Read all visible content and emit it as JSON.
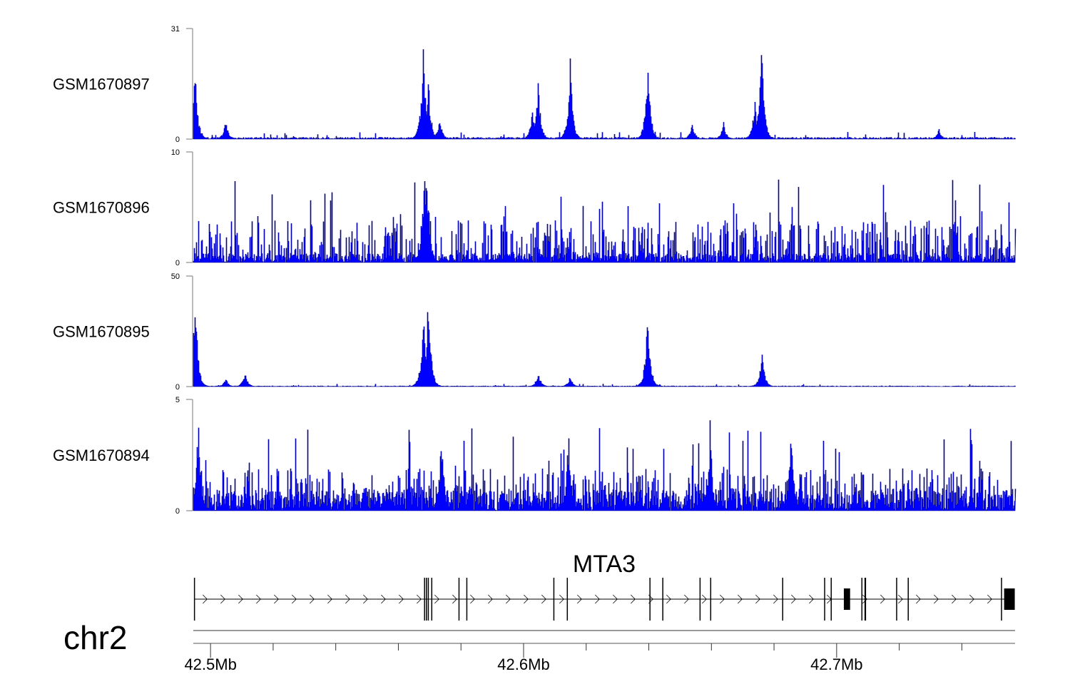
{
  "chart_data": {
    "type": "area",
    "title": "",
    "chromosome": "chr2",
    "xlim_kb": [
      42494.5,
      42757.0
    ],
    "x_ticks_kb": [
      42500,
      42520,
      42540,
      42560,
      42580,
      42600,
      42620,
      42640,
      42660,
      42680,
      42700,
      42720,
      42740
    ],
    "x_tick_labels": [
      {
        "kb": 42500,
        "label": "42.5Mb"
      },
      {
        "kb": 42600,
        "label": "42.6Mb"
      },
      {
        "kb": 42700,
        "label": "42.7Mb"
      }
    ],
    "series": [
      {
        "name": "GSM1670897",
        "ylim": [
          0,
          31
        ],
        "ytick_labels": [
          "0",
          "31"
        ],
        "noise_level": 0.5,
        "peaks": [
          [
            42495.0,
            22
          ],
          [
            42504.8,
            6
          ],
          [
            42567.9,
            29
          ],
          [
            42569.5,
            18
          ],
          [
            42573.1,
            7
          ],
          [
            42602.7,
            9
          ],
          [
            42604.6,
            17
          ],
          [
            42614.8,
            24
          ],
          [
            42639.6,
            25
          ],
          [
            42653.8,
            5
          ],
          [
            42663.8,
            5
          ],
          [
            42673.8,
            12
          ],
          [
            42675.9,
            31
          ],
          [
            42732.6,
            3
          ]
        ]
      },
      {
        "name": "GSM1670896",
        "ylim": [
          0,
          10
        ],
        "ytick_labels": [
          "0",
          "10"
        ],
        "noise_level": 1.1,
        "peaks": [
          [
            42568.2,
            10
          ],
          [
            42568.9,
            8
          ],
          [
            42569.5,
            6
          ]
        ]
      },
      {
        "name": "GSM1670895",
        "ylim": [
          0,
          50
        ],
        "ytick_labels": [
          "0",
          "50"
        ],
        "noise_level": 0.3,
        "peaks": [
          [
            42495.0,
            49
          ],
          [
            42504.8,
            4
          ],
          [
            42510.9,
            7
          ],
          [
            42567.9,
            37
          ],
          [
            42569.5,
            48
          ],
          [
            42604.6,
            7
          ],
          [
            42614.8,
            5
          ],
          [
            42639.6,
            39
          ],
          [
            42676.1,
            17
          ]
        ]
      },
      {
        "name": "GSM1670894",
        "ylim": [
          0,
          5
        ],
        "ytick_labels": [
          "0",
          "5"
        ],
        "noise_level": 1.3,
        "peaks": [
          [
            42496.0,
            4.5
          ],
          [
            42573.7,
            4.0
          ],
          [
            42614.3,
            4.1
          ],
          [
            42659.5,
            4.2
          ],
          [
            42685.5,
            4.8
          ]
        ]
      }
    ],
    "gene": {
      "name": "MTA3",
      "strand": "+",
      "start_kb": 42494.8,
      "end_kb": 42756.9,
      "exons_kb": [
        [
          42494.7,
          42495.0
        ],
        [
          42568.2,
          42568.5
        ],
        [
          42568.8,
          42569.1
        ],
        [
          42569.4,
          42569.7
        ],
        [
          42570.5,
          42570.7
        ],
        [
          42579.2,
          42579.4
        ],
        [
          42581.7,
          42581.9
        ],
        [
          42609.5,
          42609.7
        ],
        [
          42613.8,
          42614.1
        ],
        [
          42640.2,
          42640.4
        ],
        [
          42644.3,
          42644.5
        ],
        [
          42656.2,
          42656.4
        ],
        [
          42659.6,
          42659.8
        ],
        [
          42682.6,
          42682.8
        ],
        [
          42696.0,
          42696.2
        ],
        [
          42698.1,
          42698.3
        ],
        [
          42702.3,
          42704.3
        ],
        [
          42707.9,
          42708.1
        ],
        [
          42708.9,
          42709.4
        ],
        [
          42719.0,
          42719.2
        ],
        [
          42722.7,
          42722.9
        ],
        [
          42752.5,
          42752.7
        ],
        [
          42753.5,
          42756.9
        ]
      ]
    }
  }
}
